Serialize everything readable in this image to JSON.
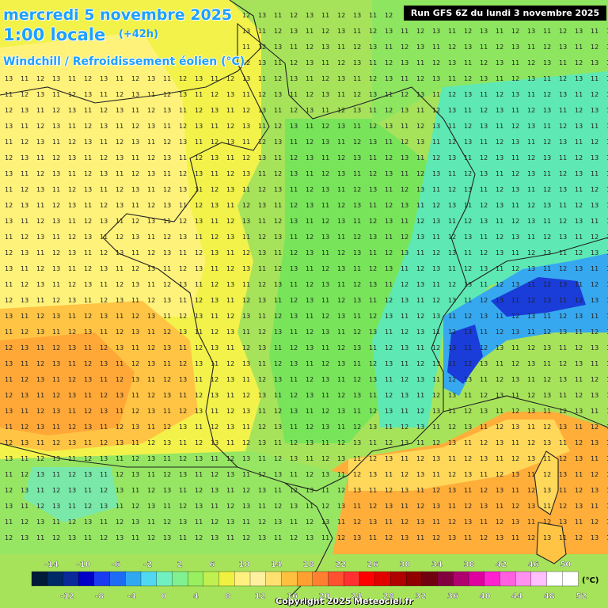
{
  "header": {
    "date_line": "mercredi 5 novembre 2025",
    "time_line": "1:00 locale",
    "offset": "(+42h)",
    "variable": "Windchill / Refroidissement éolien (°C)",
    "run": "Run GFS 6Z du lundi 3 novembre 2025"
  },
  "footer": {
    "copyright": "Copyright 2025 Meteociel.fr"
  },
  "legend": {
    "unit": "(°C)",
    "ticks_top": [
      "-14",
      "-10",
      "-6",
      "-2",
      "2",
      "6",
      "10",
      "14",
      "18",
      "22",
      "26",
      "30",
      "34",
      "38",
      "42",
      "46",
      "50"
    ],
    "ticks_bottom": [
      "-12",
      "-8",
      "-4",
      "0",
      "4",
      "8",
      "12",
      "16",
      "20",
      "24",
      "28",
      "32",
      "36",
      "40",
      "44",
      "48",
      "52"
    ],
    "colors": [
      "#001a3a",
      "#002a66",
      "#0a2a9a",
      "#0000c8",
      "#1a3cf0",
      "#1e6cf5",
      "#30a8f0",
      "#50d8f0",
      "#70f0c0",
      "#80f090",
      "#98f060",
      "#c0f050",
      "#f0f040",
      "#fff080",
      "#fff0a0",
      "#ffe070",
      "#ffc040",
      "#ffa030",
      "#ff8030",
      "#ff5030",
      "#ff3030",
      "#ff0000",
      "#e00000",
      "#b00000",
      "#900000",
      "#700010",
      "#800040",
      "#b00070",
      "#e000a0",
      "#ff20d0",
      "#ff60e0",
      "#ff90f0",
      "#ffc0ff",
      "#ffffff",
      "#ffffff"
    ]
  },
  "map_labels": {
    "row_12": "12",
    "row_11": "11",
    "row_13": "13"
  }
}
